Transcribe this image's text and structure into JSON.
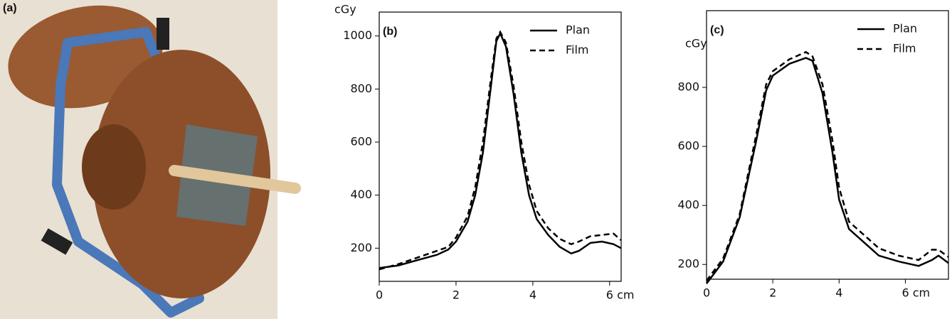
{
  "photo_label": "(a)",
  "chart_data": [
    {
      "type": "line",
      "panel_label": "(b)",
      "y_label": "cGy",
      "x": [
        0,
        0.5,
        1,
        1.5,
        1.8,
        2,
        2.3,
        2.5,
        2.7,
        2.9,
        3.05,
        3.15,
        3.3,
        3.5,
        3.7,
        3.9,
        4.1,
        4.4,
        4.7,
        5,
        5.2,
        5.5,
        5.8,
        6.1,
        6.3
      ],
      "series": [
        {
          "name": "Plan",
          "color": "#000000",
          "linestyle": "solid",
          "values": [
            125,
            135,
            155,
            175,
            195,
            225,
            300,
            400,
            560,
            800,
            980,
            1010,
            960,
            780,
            560,
            400,
            310,
            250,
            205,
            180,
            190,
            220,
            225,
            215,
            200
          ]
        },
        {
          "name": "Film",
          "color": "#000000",
          "linestyle": "dashed",
          "values": [
            120,
            140,
            165,
            190,
            205,
            240,
            320,
            430,
            600,
            830,
            990,
            1015,
            975,
            810,
            600,
            440,
            340,
            275,
            235,
            215,
            225,
            245,
            250,
            255,
            230
          ]
        }
      ],
      "xlim": [
        0,
        6.3
      ],
      "xticks": [
        0,
        2,
        4,
        {
          "value": 6,
          "label": "6 cm"
        }
      ],
      "ylim": [
        75,
        1090
      ],
      "yticks": [
        200,
        400,
        600,
        800,
        1000
      ],
      "legend": "upper right"
    },
    {
      "type": "line",
      "panel_label": "(c)",
      "y_label": "cGy",
      "x": [
        0,
        0.5,
        1,
        1.5,
        1.8,
        2,
        2.5,
        3,
        3.2,
        3.5,
        3.8,
        4,
        4.3,
        4.8,
        5.2,
        5.8,
        6.4,
        6.8,
        7,
        7.3
      ],
      "series": [
        {
          "name": "Plan",
          "color": "#000000",
          "linestyle": "solid",
          "values": [
            135,
            210,
            360,
            620,
            790,
            840,
            880,
            900,
            890,
            780,
            580,
            420,
            320,
            270,
            230,
            210,
            195,
            215,
            230,
            205
          ]
        },
        {
          "name": "Film",
          "color": "#000000",
          "linestyle": "dashed",
          "values": [
            145,
            220,
            370,
            640,
            810,
            855,
            895,
            920,
            905,
            810,
            620,
            460,
            345,
            295,
            255,
            230,
            215,
            250,
            250,
            225
          ]
        }
      ],
      "xlim": [
        0,
        7.3
      ],
      "xticks": [
        0,
        2,
        4,
        {
          "value": 6,
          "label": "6 cm"
        }
      ],
      "ylim": [
        150,
        1060
      ],
      "yticks": [
        200,
        400,
        600,
        800
      ],
      "legend": "upper right"
    }
  ]
}
